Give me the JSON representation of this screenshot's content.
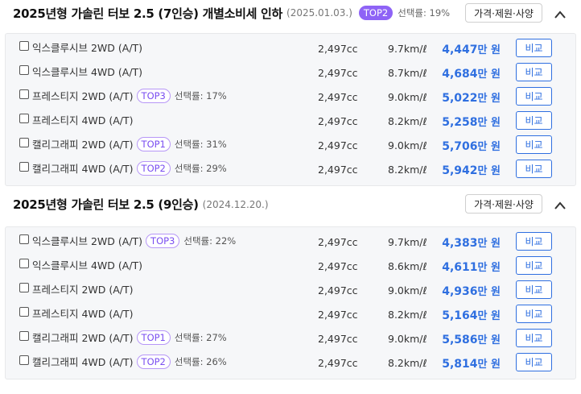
{
  "sections": [
    {
      "title": "2025년형 가솔린 터보 2.5 (7인승) 개별소비세 인하",
      "date": "(2025.01.03.)",
      "badge": "TOP2",
      "rate": "선택률: 19%",
      "spec_button": "가격·제원·사양",
      "rows": [
        {
          "trim": "익스클루시브 2WD (A/T)",
          "badge": "",
          "rate": "",
          "displacement": "2,497cc",
          "efficiency": "9.7km/ℓ",
          "price": "4,447",
          "unit": "만 원",
          "compare": "비교"
        },
        {
          "trim": "익스클루시브 4WD (A/T)",
          "badge": "",
          "rate": "",
          "displacement": "2,497cc",
          "efficiency": "8.7km/ℓ",
          "price": "4,684",
          "unit": "만 원",
          "compare": "비교"
        },
        {
          "trim": "프레스티지 2WD (A/T)",
          "badge": "TOP3",
          "rate": "선택률: 17%",
          "displacement": "2,497cc",
          "efficiency": "9.0km/ℓ",
          "price": "5,022",
          "unit": "만 원",
          "compare": "비교"
        },
        {
          "trim": "프레스티지 4WD (A/T)",
          "badge": "",
          "rate": "",
          "displacement": "2,497cc",
          "efficiency": "8.2km/ℓ",
          "price": "5,258",
          "unit": "만 원",
          "compare": "비교"
        },
        {
          "trim": "캘리그래피 2WD (A/T)",
          "badge": "TOP1",
          "rate": "선택률: 31%",
          "displacement": "2,497cc",
          "efficiency": "9.0km/ℓ",
          "price": "5,706",
          "unit": "만 원",
          "compare": "비교"
        },
        {
          "trim": "캘리그래피 4WD (A/T)",
          "badge": "TOP2",
          "rate": "선택률: 29%",
          "displacement": "2,497cc",
          "efficiency": "8.2km/ℓ",
          "price": "5,942",
          "unit": "만 원",
          "compare": "비교"
        }
      ]
    },
    {
      "title": "2025년형 가솔린 터보 2.5 (9인승)",
      "date": "(2024.12.20.)",
      "badge": "",
      "rate": "",
      "spec_button": "가격·제원·사양",
      "rows": [
        {
          "trim": "익스클루시브 2WD (A/T)",
          "badge": "TOP3",
          "rate": "선택률: 22%",
          "displacement": "2,497cc",
          "efficiency": "9.7km/ℓ",
          "price": "4,383",
          "unit": "만 원",
          "compare": "비교"
        },
        {
          "trim": "익스클루시브 4WD (A/T)",
          "badge": "",
          "rate": "",
          "displacement": "2,497cc",
          "efficiency": "8.6km/ℓ",
          "price": "4,611",
          "unit": "만 원",
          "compare": "비교"
        },
        {
          "trim": "프레스티지 2WD (A/T)",
          "badge": "",
          "rate": "",
          "displacement": "2,497cc",
          "efficiency": "9.0km/ℓ",
          "price": "4,936",
          "unit": "만 원",
          "compare": "비교"
        },
        {
          "trim": "프레스티지 4WD (A/T)",
          "badge": "",
          "rate": "",
          "displacement": "2,497cc",
          "efficiency": "8.2km/ℓ",
          "price": "5,164",
          "unit": "만 원",
          "compare": "비교"
        },
        {
          "trim": "캘리그래피 2WD (A/T)",
          "badge": "TOP1",
          "rate": "선택률: 27%",
          "displacement": "2,497cc",
          "efficiency": "9.0km/ℓ",
          "price": "5,586",
          "unit": "만 원",
          "compare": "비교"
        },
        {
          "trim": "캘리그래피 4WD (A/T)",
          "badge": "TOP2",
          "rate": "선택률: 26%",
          "displacement": "2,497cc",
          "efficiency": "8.2km/ℓ",
          "price": "5,814",
          "unit": "만 원",
          "compare": "비교"
        }
      ]
    }
  ],
  "icons": {
    "collapse": "chevron-up-icon",
    "checkbox": "checkbox-icon"
  },
  "colors": {
    "price": "#2f6fe0",
    "badge_fill": "#8e63f6",
    "badge_outline": "#b797f7"
  }
}
